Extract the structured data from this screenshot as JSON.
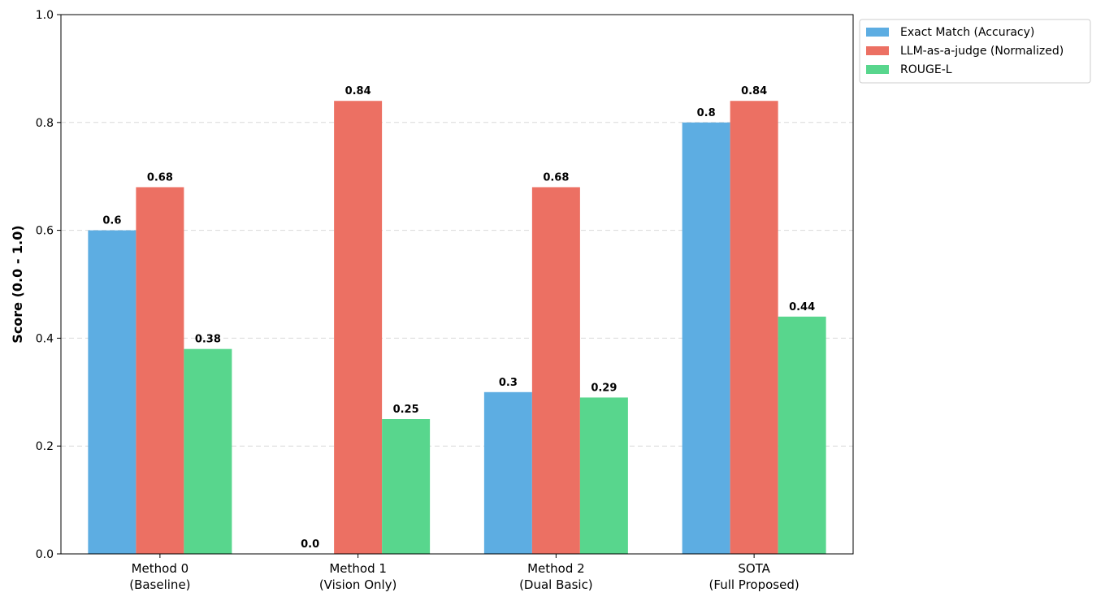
{
  "chart_data": {
    "type": "bar",
    "categories": [
      [
        "Method 0",
        "(Baseline)"
      ],
      [
        "Method 1",
        "(Vision Only)"
      ],
      [
        "Method 2",
        "(Dual Basic)"
      ],
      [
        "SOTA",
        "(Full Proposed)"
      ]
    ],
    "series": [
      {
        "name": "Exact Match (Accuracy)",
        "color": "#5DADE2",
        "values": [
          0.6,
          0.0,
          0.3,
          0.8
        ],
        "labels": [
          "0.6",
          "0.0",
          "0.3",
          "0.8"
        ]
      },
      {
        "name": "LLM-as-a-judge (Normalized)",
        "color": "#EC7063",
        "values": [
          0.68,
          0.84,
          0.68,
          0.84
        ],
        "labels": [
          "0.68",
          "0.84",
          "0.68",
          "0.84"
        ]
      },
      {
        "name": "ROUGE-L",
        "color": "#58D68D",
        "values": [
          0.38,
          0.25,
          0.29,
          0.44
        ],
        "labels": [
          "0.38",
          "0.25",
          "0.29",
          "0.44"
        ]
      }
    ],
    "title": "",
    "xlabel": "",
    "ylabel": "Score (0.0 - 1.0)",
    "ylim": [
      0,
      1.0
    ],
    "yticks": [
      "0.0",
      "0.2",
      "0.4",
      "0.6",
      "0.8",
      "1.0"
    ],
    "grid": "horizontal dashed",
    "legend_position": "upper-right-outside"
  }
}
